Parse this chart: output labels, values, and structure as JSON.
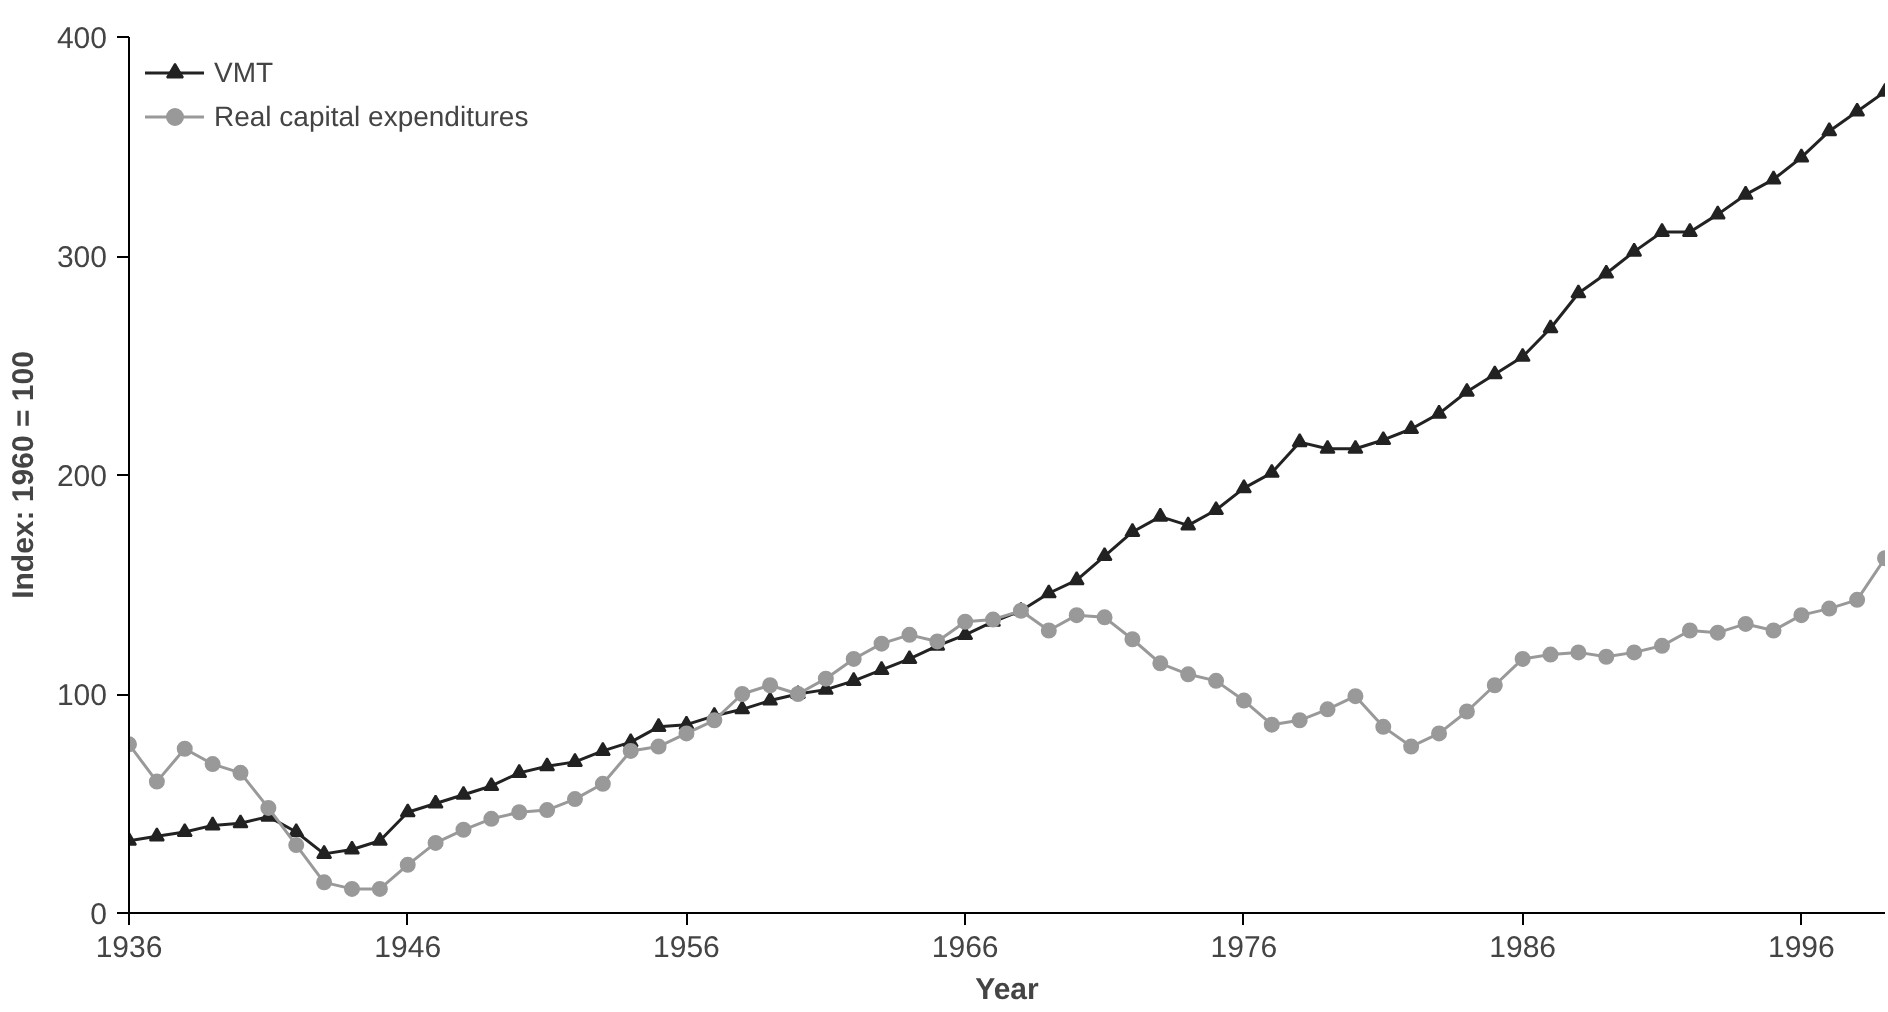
{
  "chart_data": {
    "type": "line",
    "xlabel": "Year",
    "ylabel": "Index: 1960 = 100",
    "x": [
      1936,
      1937,
      1938,
      1939,
      1940,
      1941,
      1942,
      1943,
      1944,
      1945,
      1946,
      1947,
      1948,
      1949,
      1950,
      1951,
      1952,
      1953,
      1954,
      1955,
      1956,
      1957,
      1958,
      1959,
      1960,
      1961,
      1962,
      1963,
      1964,
      1965,
      1966,
      1967,
      1968,
      1969,
      1970,
      1971,
      1972,
      1973,
      1974,
      1975,
      1976,
      1977,
      1978,
      1979,
      1980,
      1981,
      1982,
      1983,
      1984,
      1985,
      1986,
      1987,
      1988,
      1989,
      1990,
      1991,
      1992,
      1993,
      1994,
      1995,
      1996,
      1997,
      1998,
      1999
    ],
    "series": [
      {
        "name": "VMT",
        "color": "#222222",
        "marker": "triangle",
        "values": [
          33,
          35,
          37,
          40,
          41,
          44,
          37,
          27,
          29,
          33,
          46,
          50,
          54,
          58,
          64,
          67,
          69,
          74,
          78,
          85,
          86,
          90,
          93,
          97,
          100,
          102,
          106,
          111,
          116,
          122,
          127,
          133,
          138,
          146,
          152,
          163,
          174,
          181,
          177,
          184,
          194,
          201,
          215,
          212,
          212,
          216,
          221,
          228,
          238,
          246,
          254,
          267,
          283,
          292,
          302,
          311,
          311,
          319,
          328,
          335,
          345,
          357,
          366,
          375
        ]
      },
      {
        "name": "Real capital expenditures",
        "color": "#999999",
        "marker": "circle",
        "values": [
          77,
          60,
          75,
          68,
          64,
          48,
          31,
          14,
          11,
          11,
          22,
          32,
          38,
          43,
          46,
          47,
          52,
          59,
          74,
          76,
          82,
          88,
          100,
          104,
          100,
          107,
          116,
          123,
          127,
          124,
          133,
          134,
          138,
          129,
          136,
          135,
          125,
          114,
          109,
          106,
          97,
          86,
          88,
          93,
          99,
          85,
          76,
          82,
          92,
          104,
          116,
          118,
          119,
          117,
          119,
          122,
          129,
          128,
          132,
          129,
          136,
          139,
          143,
          162
        ]
      }
    ],
    "xlim": [
      1936,
      1999
    ],
    "ylim": [
      0,
      400
    ],
    "xticks": [
      1936,
      1946,
      1956,
      1966,
      1976,
      1986,
      1996
    ],
    "yticks": [
      0,
      100,
      200,
      300,
      400
    ],
    "grid": false,
    "legend": "top left",
    "line_style": "solid"
  }
}
